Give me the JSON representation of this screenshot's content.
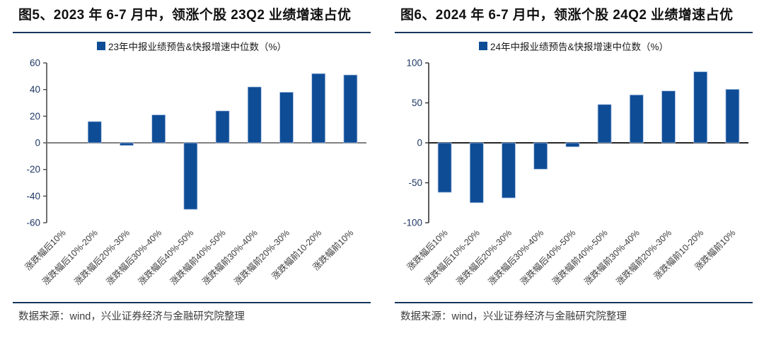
{
  "panels": [
    {
      "title": "图5、2023 年 6-7 月中，领涨个股 23Q2 业绩增速占优",
      "source": "数据来源：wind，兴业证券经济与金融研究院整理"
    },
    {
      "title": "图6、2024 年 6-7 月中，领涨个股 24Q2 业绩增速占优",
      "source": "数据来源：wind，兴业证券经济与金融研究院整理"
    }
  ],
  "chart_data": [
    {
      "type": "bar",
      "title": "图5、2023 年 6-7 月中，领涨个股 23Q2 业绩增速占优",
      "legend": "23年中报业绩预告&快报增速中位数（%）",
      "legend_position": "top-center",
      "categories": [
        "涨跌幅后10%",
        "涨跌幅后10%-20%",
        "涨跌幅后20%-30%",
        "涨跌幅后30%-40%",
        "涨跌幅后40%-50%",
        "涨跌幅前40%-50%",
        "涨跌幅前30%-40%",
        "涨跌幅前20%-30%",
        "涨跌幅前10-20%",
        "涨跌幅前10%"
      ],
      "values": [
        0,
        16,
        -2,
        21,
        -50,
        24,
        42,
        38,
        52,
        51
      ],
      "xlabel": "",
      "ylabel": "",
      "ylim": [
        -60,
        60
      ],
      "yticks": [
        60,
        40,
        20,
        0,
        -20,
        -40,
        -60
      ],
      "grid": false,
      "bar_color": "#0E4D96",
      "bar_edge_color": "#B4C7E7",
      "axis_color": "#404040",
      "zero_line_color": "#808080",
      "tick_label_color": "#1F3864",
      "category_label_color": "#3c3c3c"
    },
    {
      "type": "bar",
      "title": "图6、2024 年 6-7 月中，领涨个股 24Q2 业绩增速占优",
      "legend": "24年中报业绩预告&快报增速中位数（%）",
      "legend_position": "top-center",
      "categories": [
        "涨跌幅后10%",
        "涨跌幅后10%-20%",
        "涨跌幅后20%-30%",
        "涨跌幅后30%-40%",
        "涨跌幅后40%-50%",
        "涨跌幅前40%-50%",
        "涨跌幅前30%-40%",
        "涨跌幅前20%-30%",
        "涨跌幅前10-20%",
        "涨跌幅前10%"
      ],
      "values": [
        -62,
        -75,
        -69,
        -33,
        -5,
        48,
        60,
        65,
        89,
        67
      ],
      "xlabel": "",
      "ylabel": "",
      "ylim": [
        -100,
        100
      ],
      "yticks": [
        100,
        50,
        0,
        -50,
        -100
      ],
      "grid": false,
      "bar_color": "#0E4D96",
      "bar_edge_color": "#B4C7E7",
      "axis_color": "#262626",
      "zero_line_color": "#262626",
      "tick_label_color": "#1F3864",
      "category_label_color": "#3c3c3c"
    }
  ]
}
